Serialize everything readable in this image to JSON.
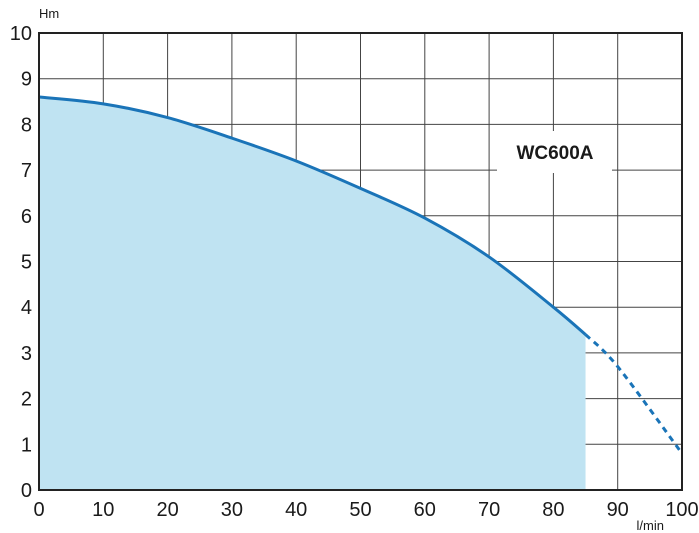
{
  "chart_data": {
    "type": "area",
    "title": "",
    "xlabel": "l/min",
    "ylabel": "Hm",
    "xlim": [
      0,
      100
    ],
    "ylim": [
      0,
      10
    ],
    "grid": true,
    "x_ticks": [
      "0",
      "10",
      "20",
      "30",
      "40",
      "50",
      "60",
      "70",
      "80",
      "90",
      "100"
    ],
    "y_ticks": [
      "0",
      "1",
      "2",
      "3",
      "4",
      "5",
      "6",
      "7",
      "8",
      "9",
      "10"
    ],
    "series": [
      {
        "name": "WC600A",
        "x": [
          0,
          10,
          20,
          30,
          40,
          50,
          60,
          70,
          80,
          85,
          90,
          100
        ],
        "y": [
          8.6,
          8.45,
          8.15,
          7.7,
          7.2,
          6.6,
          5.95,
          5.1,
          4.0,
          3.4,
          2.7,
          0.8
        ],
        "operating_range_end": 85,
        "line_color": "#1a74b8",
        "fill_color": "#bfe3f2"
      }
    ],
    "annotations": [
      {
        "text": "WC600A",
        "position": "top-right"
      }
    ]
  }
}
